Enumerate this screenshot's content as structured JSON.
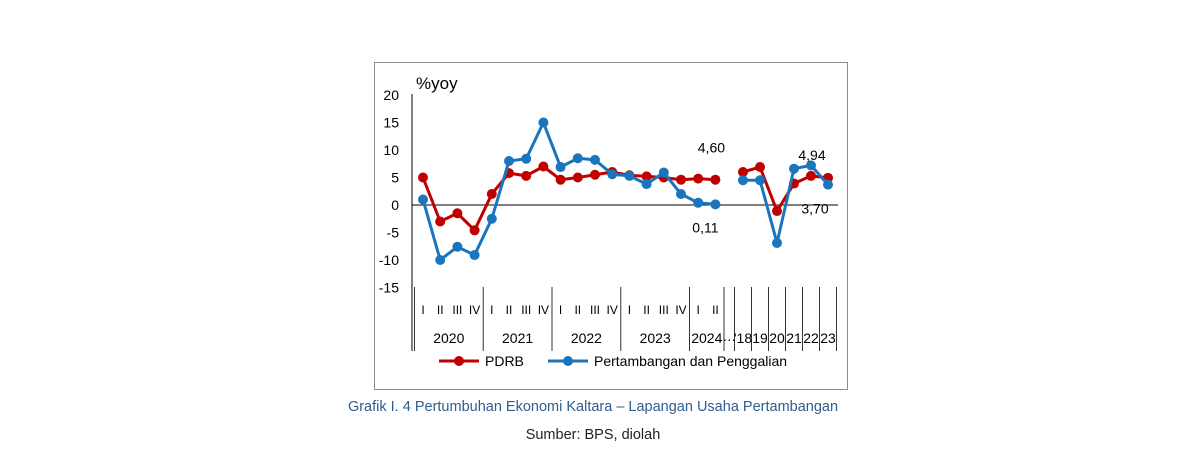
{
  "chart_data": {
    "type": "line",
    "ylabel": "%yoy",
    "ylim": [
      -15,
      20
    ],
    "yticks": [
      20,
      15,
      10,
      5,
      0,
      -5,
      -10,
      -15
    ],
    "grid": false,
    "legend_position": "bottom",
    "x_quarter_labels": [
      "I",
      "II",
      "III",
      "IV",
      "I",
      "II",
      "III",
      "IV",
      "I",
      "II",
      "III",
      "IV",
      "I",
      "II",
      "III",
      "IV",
      "I",
      "II"
    ],
    "x_groups": [
      {
        "label": "2020",
        "span": 4
      },
      {
        "label": "2021",
        "span": 4
      },
      {
        "label": "2022",
        "span": 4
      },
      {
        "label": "2023",
        "span": 4
      },
      {
        "label": "2024",
        "span": 2
      },
      {
        "label": "…",
        "span": 1
      },
      {
        "label": "'18",
        "span": 1
      },
      {
        "label": "19",
        "span": 1
      },
      {
        "label": "20",
        "span": 1
      },
      {
        "label": "21",
        "span": 1
      },
      {
        "label": "22",
        "span": 1
      },
      {
        "label": "23",
        "span": 1
      }
    ],
    "series": [
      {
        "name": "PDRB",
        "color": "#c00000",
        "quarterly": [
          5.0,
          -3.0,
          -1.5,
          -4.6,
          2.0,
          5.8,
          5.3,
          7.0,
          4.6,
          5.0,
          5.5,
          6.0,
          5.4,
          5.2,
          5.0,
          4.6,
          4.8,
          4.6
        ],
        "annual": [
          6.0,
          6.9,
          -1.1,
          3.9,
          5.3,
          4.94
        ]
      },
      {
        "name": "Pertambangan dan Penggalian",
        "color": "#1a75bc",
        "quarterly": [
          1.0,
          -10.0,
          -7.6,
          -9.1,
          -2.5,
          8.0,
          8.4,
          15.0,
          6.9,
          8.5,
          8.2,
          5.6,
          5.3,
          3.8,
          5.9,
          2.0,
          0.4,
          0.11
        ],
        "annual": [
          4.5,
          4.5,
          -6.9,
          6.6,
          7.2,
          3.7
        ]
      }
    ],
    "annotations": [
      {
        "text": "4,60",
        "series": 0,
        "period": "quarterly",
        "index": 17
      },
      {
        "text": "0,11",
        "series": 1,
        "period": "quarterly",
        "index": 17
      },
      {
        "text": "4,94",
        "series": 0,
        "period": "annual",
        "index": 5
      },
      {
        "text": "3,70",
        "series": 1,
        "period": "annual",
        "index": 5
      }
    ]
  },
  "caption": {
    "title": "Grafik I. 4 Pertumbuhan Ekonomi Kaltara – Lapangan Usaha Pertambangan",
    "source": "Sumber: BPS, diolah"
  }
}
